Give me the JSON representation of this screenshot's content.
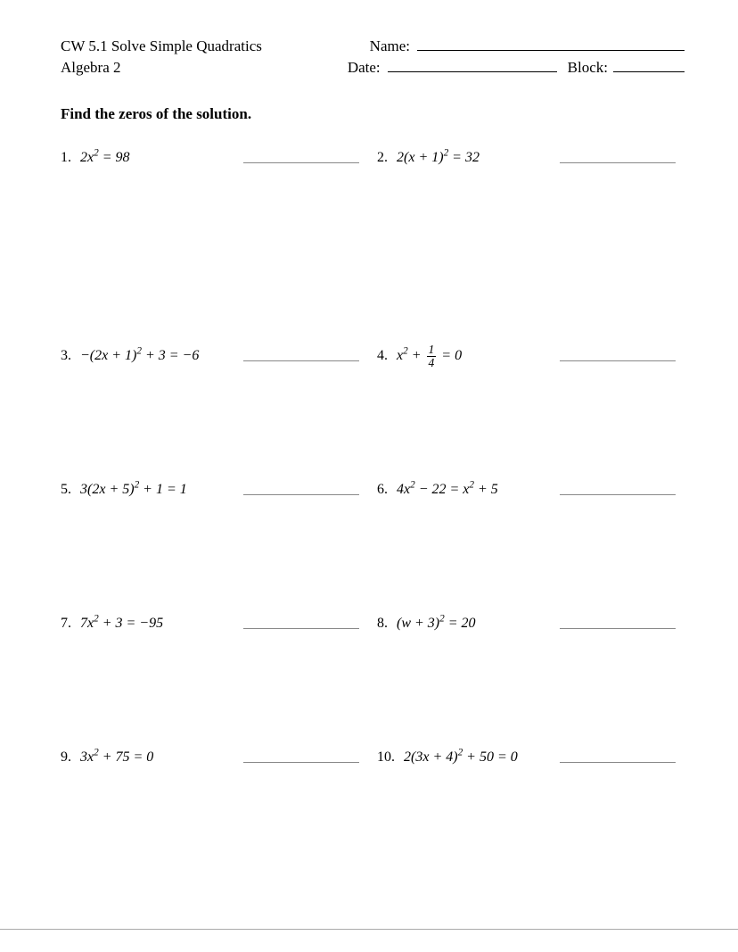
{
  "header": {
    "title": "CW 5.1 Solve Simple Quadratics",
    "subtitle": "Algebra 2",
    "name_label": "Name:",
    "date_label": "Date:",
    "block_label": "Block:"
  },
  "instruction": "Find the zeros of the solution.",
  "problems": [
    {
      "num": "1.",
      "equation_html": "2<i>x</i><sup>2</sup> = 98"
    },
    {
      "num": "2.",
      "equation_html": "2(<i>x</i> + 1)<sup>2</sup> = 32"
    },
    {
      "num": "3.",
      "equation_html": "−(2<i>x</i> + 1)<sup>2</sup> + 3 = −6"
    },
    {
      "num": "4.",
      "equation_html": "<i>x</i><sup>2</sup> + <span class=\"frac\"><span class=\"num\">1</span><span class=\"den\">4</span></span> = 0"
    },
    {
      "num": "5.",
      "equation_html": "3(2<i>x</i> + 5)<sup>2</sup> + 1 = 1"
    },
    {
      "num": "6.",
      "equation_html": "4<i>x</i><sup>2</sup> − 22 = <i>x</i><sup>2</sup> + 5"
    },
    {
      "num": "7.",
      "equation_html": "7<i>x</i><sup>2</sup> + 3 = −95"
    },
    {
      "num": "8.",
      "equation_html": "(<i>w</i> + 3)<sup>2</sup> = 20"
    },
    {
      "num": "9.",
      "equation_html": "3<i>x</i><sup>2</sup> + 75 = 0"
    },
    {
      "num": "10.",
      "equation_html": "2(3<i>x</i> + 4)<sup>2</sup> + 50 = 0"
    }
  ],
  "colors": {
    "background": "#ffffff",
    "text": "#000000",
    "answer_line": "#888888"
  }
}
